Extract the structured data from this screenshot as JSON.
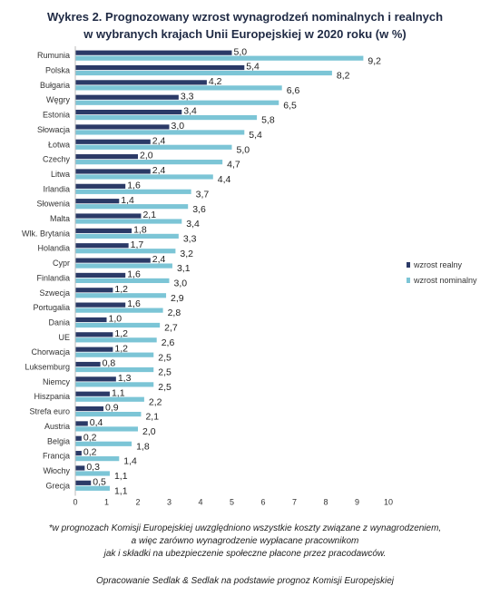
{
  "title": {
    "line1": "Wykres 2. Prognozowany wzrost wynagrodzeń nominalnych i realnych",
    "line2": "w wybranych krajach Unii Europejskiej w 2020 roku (w %)"
  },
  "chart_data": {
    "type": "bar",
    "orientation": "horizontal",
    "categories": [
      "Rumunia",
      "Polska",
      "Bułgaria",
      "Węgry",
      "Estonia",
      "Słowacja",
      "Łotwa",
      "Czechy",
      "Litwa",
      "Irlandia",
      "Słowenia",
      "Malta",
      "Wlk. Brytania",
      "Holandia",
      "Cypr",
      "Finlandia",
      "Szwecja",
      "Portugalia",
      "Dania",
      "UE",
      "Chorwacja",
      "Luksemburg",
      "Niemcy",
      "Hiszpania",
      "Strefa euro",
      "Austria",
      "Belgia",
      "Francja",
      "Włochy",
      "Grecja"
    ],
    "series": [
      {
        "name": "wzrost realny",
        "color": "#2b3a67",
        "values": [
          5.0,
          5.4,
          4.2,
          3.3,
          3.4,
          3.0,
          2.4,
          2.0,
          2.4,
          1.6,
          1.4,
          2.1,
          1.8,
          1.7,
          2.4,
          1.6,
          1.2,
          1.6,
          1.0,
          1.2,
          1.2,
          0.8,
          1.3,
          1.1,
          0.9,
          0.4,
          0.2,
          0.2,
          0.3,
          0.5
        ]
      },
      {
        "name": "wzrost nominalny",
        "color": "#7cc5d6",
        "values": [
          9.2,
          8.2,
          6.6,
          6.5,
          5.8,
          5.4,
          5.0,
          4.7,
          4.4,
          3.7,
          3.6,
          3.4,
          3.3,
          3.2,
          3.1,
          3.0,
          2.9,
          2.8,
          2.7,
          2.6,
          2.5,
          2.5,
          2.5,
          2.2,
          2.1,
          2.0,
          1.8,
          1.4,
          1.1,
          1.1
        ]
      }
    ],
    "value_labels": {
      "real": [
        "5,0",
        "5,4",
        "4,2",
        "3,3",
        "3,4",
        "3,0",
        "2,4",
        "2,0",
        "2,4",
        "1,6",
        "1,4",
        "2,1",
        "1,8",
        "1,7",
        "2,4",
        "1,6",
        "1,2",
        "1,6",
        "1,0",
        "1,2",
        "1,2",
        "0,8",
        "1,3",
        "1,1",
        "0,9",
        "0,4",
        "0,2",
        "0,2",
        "0,3",
        "0,5"
      ],
      "nominal": [
        "9,2",
        "8,2",
        "6,6",
        "6,5",
        "5,8",
        "5,4",
        "5,0",
        "4,7",
        "4,4",
        "3,7",
        "3,6",
        "3,4",
        "3,3",
        "3,2",
        "3,1",
        "3,0",
        "2,9",
        "2,8",
        "2,7",
        "2,6",
        "2,5",
        "2,5",
        "2,5",
        "2,2",
        "2,1",
        "2,0",
        "1,8",
        "1,4",
        "1,1",
        "1,1"
      ]
    },
    "xlim": [
      0,
      10
    ],
    "xticks": [
      "0",
      "1",
      "2",
      "3",
      "4",
      "5",
      "6",
      "7",
      "8",
      "9",
      "10"
    ],
    "grid": false,
    "legend": "right"
  },
  "footnote": {
    "line1": "*w prognozach Komisji Europejskiej uwzględniono wszystkie koszty związane z wynagrodzeniem,",
    "line2": "a więc zarówno wynagrodzenie wypłacane pracownikom",
    "line3": "jak i składki na ubezpieczenie społeczne płacone przez pracodawców."
  },
  "source": "Opracowanie Sedlak & Sedlak na podstawie prognoz Komisji Europejskiej"
}
